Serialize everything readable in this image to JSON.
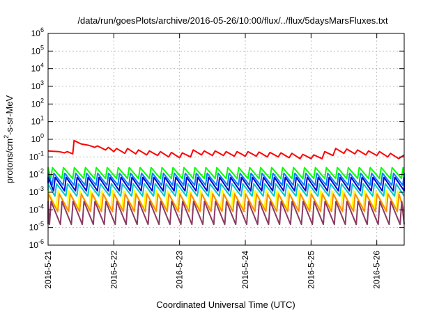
{
  "chart_data": {
    "type": "line",
    "title": "/data/run/goesPlots/archive/2016-05-26/10:00/flux/../flux/5daysMarsFluxes.txt",
    "xlabel": "Coordinated Universal Time (UTC)",
    "ylabel_parts": [
      "protons/cm",
      "2",
      "-s-sr-MeV"
    ],
    "y_scale": "log",
    "ylim": [
      1e-06,
      1000000.0
    ],
    "y_ticks": [
      {
        "value": 1e-06,
        "base": "10",
        "exp": "-6"
      },
      {
        "value": 1e-05,
        "base": "10",
        "exp": "-5"
      },
      {
        "value": 0.0001,
        "base": "10",
        "exp": "-4"
      },
      {
        "value": 0.001,
        "base": "10",
        "exp": "-3"
      },
      {
        "value": 0.01,
        "base": "10",
        "exp": "-2"
      },
      {
        "value": 0.1,
        "base": "10",
        "exp": "-1"
      },
      {
        "value": 1,
        "base": "10",
        "exp": "0"
      },
      {
        "value": 10,
        "base": "10",
        "exp": "1"
      },
      {
        "value": 100,
        "base": "10",
        "exp": "2"
      },
      {
        "value": 1000,
        "base": "10",
        "exp": "3"
      },
      {
        "value": 10000,
        "base": "10",
        "exp": "4"
      },
      {
        "value": 100000,
        "base": "10",
        "exp": "5"
      },
      {
        "value": 1000000,
        "base": "10",
        "exp": "6"
      }
    ],
    "x_range": [
      "2016-05-21T00:00",
      "2016-05-26T10:00"
    ],
    "x_ticks": [
      "2016-5-21",
      "2016-5-22",
      "2016-5-23",
      "2016-5-24",
      "2016-5-25",
      "2016-5-26"
    ],
    "grid": true,
    "series": [
      {
        "color": "#ff0000",
        "points": [
          [
            "2016-05-21T00:00",
            0.22
          ],
          [
            "2016-05-21T04:00",
            0.2
          ],
          [
            "2016-05-21T06:00",
            0.17
          ],
          [
            "2016-05-21T07:00",
            0.2
          ],
          [
            "2016-05-21T09:00",
            0.15
          ],
          [
            "2016-05-21T09:30",
            0.85
          ],
          [
            "2016-05-21T12:00",
            0.55
          ],
          [
            "2016-05-21T15:00",
            0.45
          ],
          [
            "2016-05-21T17:00",
            0.35
          ],
          [
            "2016-05-21T18:00",
            0.42
          ],
          [
            "2016-05-21T21:00",
            0.25
          ],
          [
            "2016-05-21T22:00",
            0.35
          ],
          [
            "2016-05-22T00:00",
            0.2
          ],
          [
            "2016-05-22T01:00",
            0.3
          ],
          [
            "2016-05-22T04:00",
            0.16
          ],
          [
            "2016-05-22T05:00",
            0.3
          ],
          [
            "2016-05-22T08:00",
            0.15
          ],
          [
            "2016-05-22T09:00",
            0.25
          ],
          [
            "2016-05-22T12:00",
            0.13
          ],
          [
            "2016-05-22T13:00",
            0.22
          ],
          [
            "2016-05-22T16:00",
            0.12
          ],
          [
            "2016-05-22T17:00",
            0.2
          ],
          [
            "2016-05-22T20:00",
            0.1
          ],
          [
            "2016-05-22T21:00",
            0.18
          ],
          [
            "2016-05-23T00:00",
            0.09
          ],
          [
            "2016-05-23T01:00",
            0.17
          ],
          [
            "2016-05-23T04:00",
            0.1
          ],
          [
            "2016-05-23T05:00",
            0.25
          ],
          [
            "2016-05-23T08:00",
            0.13
          ],
          [
            "2016-05-23T09:00",
            0.22
          ],
          [
            "2016-05-23T12:00",
            0.12
          ],
          [
            "2016-05-23T13:00",
            0.22
          ],
          [
            "2016-05-23T16:00",
            0.12
          ],
          [
            "2016-05-23T17:00",
            0.2
          ],
          [
            "2016-05-23T20:00",
            0.11
          ],
          [
            "2016-05-23T21:00",
            0.2
          ],
          [
            "2016-05-24T00:00",
            0.11
          ],
          [
            "2016-05-24T01:00",
            0.2
          ],
          [
            "2016-05-24T04:00",
            0.11
          ],
          [
            "2016-05-24T05:00",
            0.19
          ],
          [
            "2016-05-24T08:00",
            0.1
          ],
          [
            "2016-05-24T09:00",
            0.18
          ],
          [
            "2016-05-24T12:00",
            0.1
          ],
          [
            "2016-05-24T13:00",
            0.17
          ],
          [
            "2016-05-24T16:00",
            0.09
          ],
          [
            "2016-05-24T17:00",
            0.16
          ],
          [
            "2016-05-24T20:00",
            0.08
          ],
          [
            "2016-05-24T21:00",
            0.14
          ],
          [
            "2016-05-25T00:00",
            0.08
          ],
          [
            "2016-05-25T01:00",
            0.13
          ],
          [
            "2016-05-25T04:00",
            0.08
          ],
          [
            "2016-05-25T05:00",
            0.2
          ],
          [
            "2016-05-25T08:00",
            0.12
          ],
          [
            "2016-05-25T09:00",
            0.3
          ],
          [
            "2016-05-25T12:00",
            0.16
          ],
          [
            "2016-05-25T13:00",
            0.28
          ],
          [
            "2016-05-25T16:00",
            0.15
          ],
          [
            "2016-05-25T17:00",
            0.25
          ],
          [
            "2016-05-25T20:00",
            0.13
          ],
          [
            "2016-05-25T21:00",
            0.22
          ],
          [
            "2016-05-26T00:00",
            0.12
          ],
          [
            "2016-05-26T01:00",
            0.2
          ],
          [
            "2016-05-26T04:00",
            0.1
          ],
          [
            "2016-05-26T05:00",
            0.16
          ],
          [
            "2016-05-26T08:00",
            0.08
          ],
          [
            "2016-05-26T10:00",
            0.13
          ]
        ]
      },
      {
        "color": "#00ff00",
        "min": 0.006,
        "max": 0.025,
        "period_h": 4,
        "phase_h": 1
      },
      {
        "color": "#0080ff",
        "min": 0.0025,
        "max": 0.012,
        "period_h": 4,
        "phase_h": 1.5
      },
      {
        "color": "#0000d0",
        "min": 0.0012,
        "max": 0.007,
        "period_h": 4,
        "phase_h": 2
      },
      {
        "color": "#00c8c8",
        "min": 0.0006,
        "max": 0.003,
        "period_h": 4,
        "phase_h": 2.5
      },
      {
        "color": "#ffff00",
        "min": 0.00012,
        "max": 0.0012,
        "period_h": 4,
        "phase_h": 3
      },
      {
        "color": "#ff8c00",
        "min": 8e-05,
        "max": 0.0008,
        "period_h": 4,
        "phase_h": 3.5
      },
      {
        "color": "#8b3a62",
        "min": 1.5e-05,
        "max": 0.0003,
        "period_h": 4,
        "phase_h": 0.5
      }
    ]
  }
}
